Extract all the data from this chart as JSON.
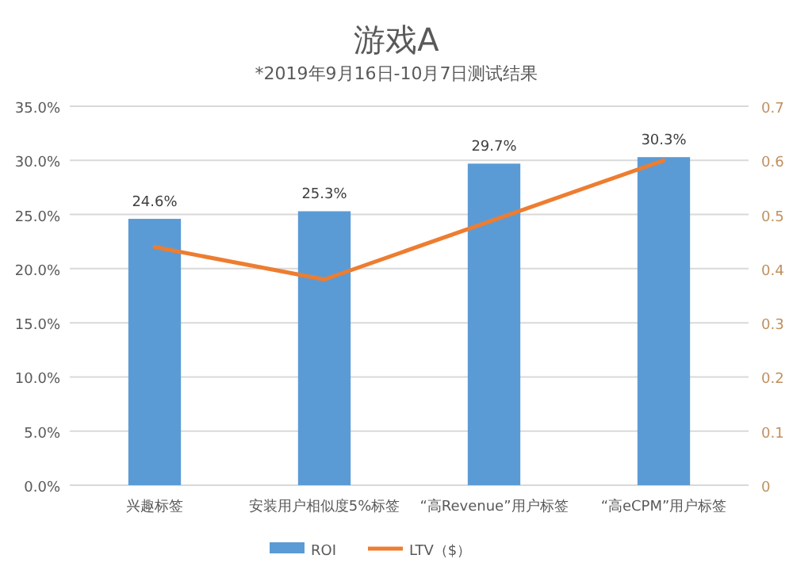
{
  "chart_data": {
    "type": "bar",
    "title": "游戏A",
    "subtitle": "*2019年9月16日-10月7日测试结果",
    "categories": [
      "兴趣标签",
      "安装用户相似度5%标签",
      "“高Revenue”用户标签",
      "“高eCPM”用户标签"
    ],
    "series": [
      {
        "name": "ROI",
        "color": "#5b9bd5",
        "values": [
          24.6,
          25.3,
          29.7,
          30.3
        ],
        "value_labels": [
          "24.6%",
          "25.3%",
          "29.7%",
          "30.3%"
        ]
      },
      {
        "name": "LTV（$）",
        "type": "line",
        "axis": "y2",
        "color": "#ed7d31",
        "values": [
          0.44,
          0.38,
          0.49,
          0.6
        ]
      }
    ],
    "ylim": [
      0,
      35
    ],
    "yticks": [
      {
        "value": 0,
        "label": "0.0%"
      },
      {
        "value": 5,
        "label": "5.0%"
      },
      {
        "value": 10,
        "label": "10.0%"
      },
      {
        "value": 15,
        "label": "15.0%"
      },
      {
        "value": 20,
        "label": "20.0%"
      },
      {
        "value": 25,
        "label": "25.0%"
      },
      {
        "value": 30,
        "label": "30.0%"
      },
      {
        "value": 35,
        "label": "35.0%"
      }
    ],
    "y2lim": [
      0,
      0.7
    ],
    "y2ticks": [
      0,
      0.1,
      0.2,
      0.3,
      0.4,
      0.5,
      0.6,
      0.7
    ],
    "grid": "y",
    "legend": "bottom",
    "marker": "none"
  }
}
